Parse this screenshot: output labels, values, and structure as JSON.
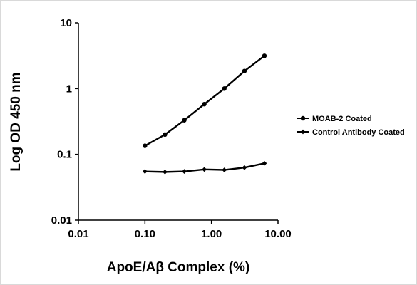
{
  "chart_data": {
    "type": "line",
    "xscale": "log",
    "yscale": "log",
    "xlim": [
      0.01,
      10
    ],
    "ylim": [
      0.01,
      10
    ],
    "xticks": [
      "0.01",
      "0.10",
      "1.00",
      "10.00"
    ],
    "yticks": [
      "0.01",
      "0.1",
      "1",
      "10"
    ],
    "xlabel": "ApoE/Aβ Complex (%)",
    "ylabel": "Log OD 450 nm",
    "grid": false,
    "legend_position": "right",
    "x": [
      0.1,
      0.2,
      0.39,
      0.78,
      1.56,
      3.13,
      6.25
    ],
    "series": [
      {
        "name": "MOAB-2 Coated",
        "marker": "circle",
        "color": "#000000",
        "values": [
          0.135,
          0.2,
          0.33,
          0.58,
          1.0,
          1.85,
          3.15
        ]
      },
      {
        "name": "Control Antibody Coated",
        "marker": "diamond",
        "color": "#000000",
        "values": [
          0.055,
          0.054,
          0.055,
          0.059,
          0.058,
          0.063,
          0.073
        ]
      }
    ]
  }
}
